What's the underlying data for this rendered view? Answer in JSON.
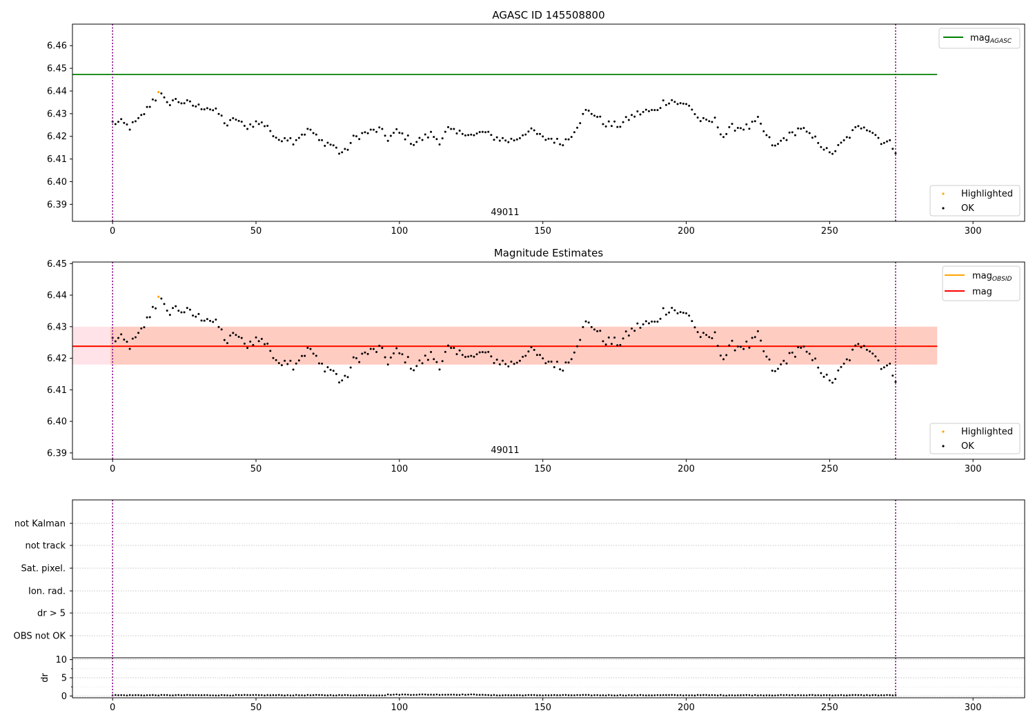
{
  "chart_data": [
    {
      "type": "scatter",
      "title": "AGASC ID 145508800",
      "obsid_label": "49011",
      "xlim": [
        -14,
        318
      ],
      "ylim": [
        6.3825,
        6.4695
      ],
      "x_ticks": [
        0,
        50,
        100,
        150,
        200,
        250,
        300
      ],
      "y_ticks": [
        6.39,
        6.4,
        6.41,
        6.42,
        6.43,
        6.44,
        6.45,
        6.46
      ],
      "obs_boundaries": [
        0,
        273
      ],
      "mag_agasc": 6.4473,
      "line_x_range": [
        -14,
        287.5
      ],
      "legend_lines": [
        {
          "label": "mag",
          "sub": "AGASC",
          "color": "#008000"
        }
      ],
      "legend_points": [
        {
          "label": "Highlighted",
          "color": "#ffa500"
        },
        {
          "label": "OK",
          "color": "#000000"
        }
      ],
      "highlighted": [
        {
          "x": 16,
          "y": 6.4395
        }
      ]
    },
    {
      "type": "scatter",
      "title": "Magnitude Estimates",
      "obsid_label": "49011",
      "xlim": [
        -14,
        318
      ],
      "ylim": [
        6.388,
        6.4505
      ],
      "x_ticks": [
        0,
        50,
        100,
        150,
        200,
        250,
        300
      ],
      "y_ticks": [
        6.39,
        6.4,
        6.41,
        6.42,
        6.43,
        6.44,
        6.45
      ],
      "obs_boundaries": [
        0,
        273
      ],
      "mag": 6.4238,
      "mag_obsid": 6.4238,
      "band_outer": [
        6.418,
        6.43
      ],
      "band_inner": [
        6.418,
        6.43
      ],
      "line_x_range": [
        -14,
        287.5
      ],
      "legend_lines": [
        {
          "label": "mag",
          "sub": "OBSID",
          "color": "#ffa500"
        },
        {
          "label": "mag",
          "sub": "",
          "color": "#ff0000"
        }
      ],
      "legend_points": [
        {
          "label": "Highlighted",
          "color": "#ffa500"
        },
        {
          "label": "OK",
          "color": "#000000"
        }
      ],
      "highlighted": [
        {
          "x": 16,
          "y": 6.4395
        }
      ]
    },
    {
      "type": "scatter",
      "title": "",
      "xlim": [
        -14,
        318
      ],
      "obs_boundaries": [
        0,
        273
      ],
      "flag_labels": [
        "not Kalman",
        "not track",
        "Sat. pixel.",
        "Ion. rad.",
        "dr > 5",
        "OBS not OK"
      ]
    },
    {
      "type": "scatter",
      "title": "",
      "ylabel": "dr",
      "xlim": [
        -14,
        318
      ],
      "ylim": [
        -0.5,
        10.5
      ],
      "x_ticks": [
        0,
        50,
        100,
        150,
        200,
        250,
        300
      ],
      "y_ticks": [
        0,
        5,
        10
      ],
      "obs_boundaries": [
        0,
        273
      ],
      "dr_range": [
        0.1,
        0.5
      ]
    }
  ],
  "mag_anchors": [
    [
      0,
      6.426
    ],
    [
      3,
      6.426
    ],
    [
      6,
      6.424
    ],
    [
      9,
      6.427
    ],
    [
      12,
      6.432
    ],
    [
      14,
      6.436
    ],
    [
      17,
      6.438
    ],
    [
      19,
      6.434
    ],
    [
      21,
      6.436
    ],
    [
      25,
      6.435
    ],
    [
      30,
      6.433
    ],
    [
      33,
      6.433
    ],
    [
      37,
      6.43
    ],
    [
      40,
      6.425
    ],
    [
      43,
      6.428
    ],
    [
      46,
      6.424
    ],
    [
      50,
      6.426
    ],
    [
      54,
      6.425
    ],
    [
      57,
      6.418
    ],
    [
      60,
      6.42
    ],
    [
      63,
      6.418
    ],
    [
      66,
      6.421
    ],
    [
      69,
      6.423
    ],
    [
      72,
      6.418
    ],
    [
      75,
      6.417
    ],
    [
      77,
      6.416
    ],
    [
      79,
      6.413
    ],
    [
      81,
      6.413
    ],
    [
      84,
      6.419
    ],
    [
      87,
      6.421
    ],
    [
      90,
      6.422
    ],
    [
      93,
      6.423
    ],
    [
      96,
      6.419
    ],
    [
      99,
      6.422
    ],
    [
      102,
      6.42
    ],
    [
      105,
      6.417
    ],
    [
      108,
      6.419
    ],
    [
      111,
      6.421
    ],
    [
      114,
      6.418
    ],
    [
      117,
      6.423
    ],
    [
      120,
      6.421
    ],
    [
      123,
      6.422
    ],
    [
      126,
      6.42
    ],
    [
      129,
      6.422
    ],
    [
      132,
      6.42
    ],
    [
      135,
      6.419
    ],
    [
      138,
      6.418
    ],
    [
      141,
      6.419
    ],
    [
      144,
      6.422
    ],
    [
      147,
      6.422
    ],
    [
      150,
      6.419
    ],
    [
      153,
      6.419
    ],
    [
      156,
      6.417
    ],
    [
      159,
      6.419
    ],
    [
      162,
      6.425
    ],
    [
      165,
      6.431
    ],
    [
      168,
      6.43
    ],
    [
      171,
      6.426
    ],
    [
      174,
      6.425
    ],
    [
      177,
      6.425
    ],
    [
      180,
      6.428
    ],
    [
      183,
      6.43
    ],
    [
      186,
      6.431
    ],
    [
      189,
      6.431
    ],
    [
      192,
      6.435
    ],
    [
      195,
      6.436
    ],
    [
      198,
      6.434
    ],
    [
      201,
      6.434
    ],
    [
      204,
      6.428
    ],
    [
      207,
      6.426
    ],
    [
      210,
      6.427
    ],
    [
      213,
      6.42
    ],
    [
      216,
      6.424
    ],
    [
      219,
      6.424
    ],
    [
      222,
      6.424
    ],
    [
      225,
      6.427
    ],
    [
      228,
      6.42
    ],
    [
      231,
      6.415
    ],
    [
      234,
      6.419
    ],
    [
      237,
      6.421
    ],
    [
      240,
      6.424
    ],
    [
      243,
      6.42
    ],
    [
      246,
      6.418
    ],
    [
      250,
      6.412
    ],
    [
      253,
      6.415
    ],
    [
      256,
      6.419
    ],
    [
      259,
      6.423
    ],
    [
      262,
      6.425
    ],
    [
      265,
      6.422
    ],
    [
      268,
      6.418
    ],
    [
      271,
      6.417
    ],
    [
      273,
      6.414
    ]
  ]
}
